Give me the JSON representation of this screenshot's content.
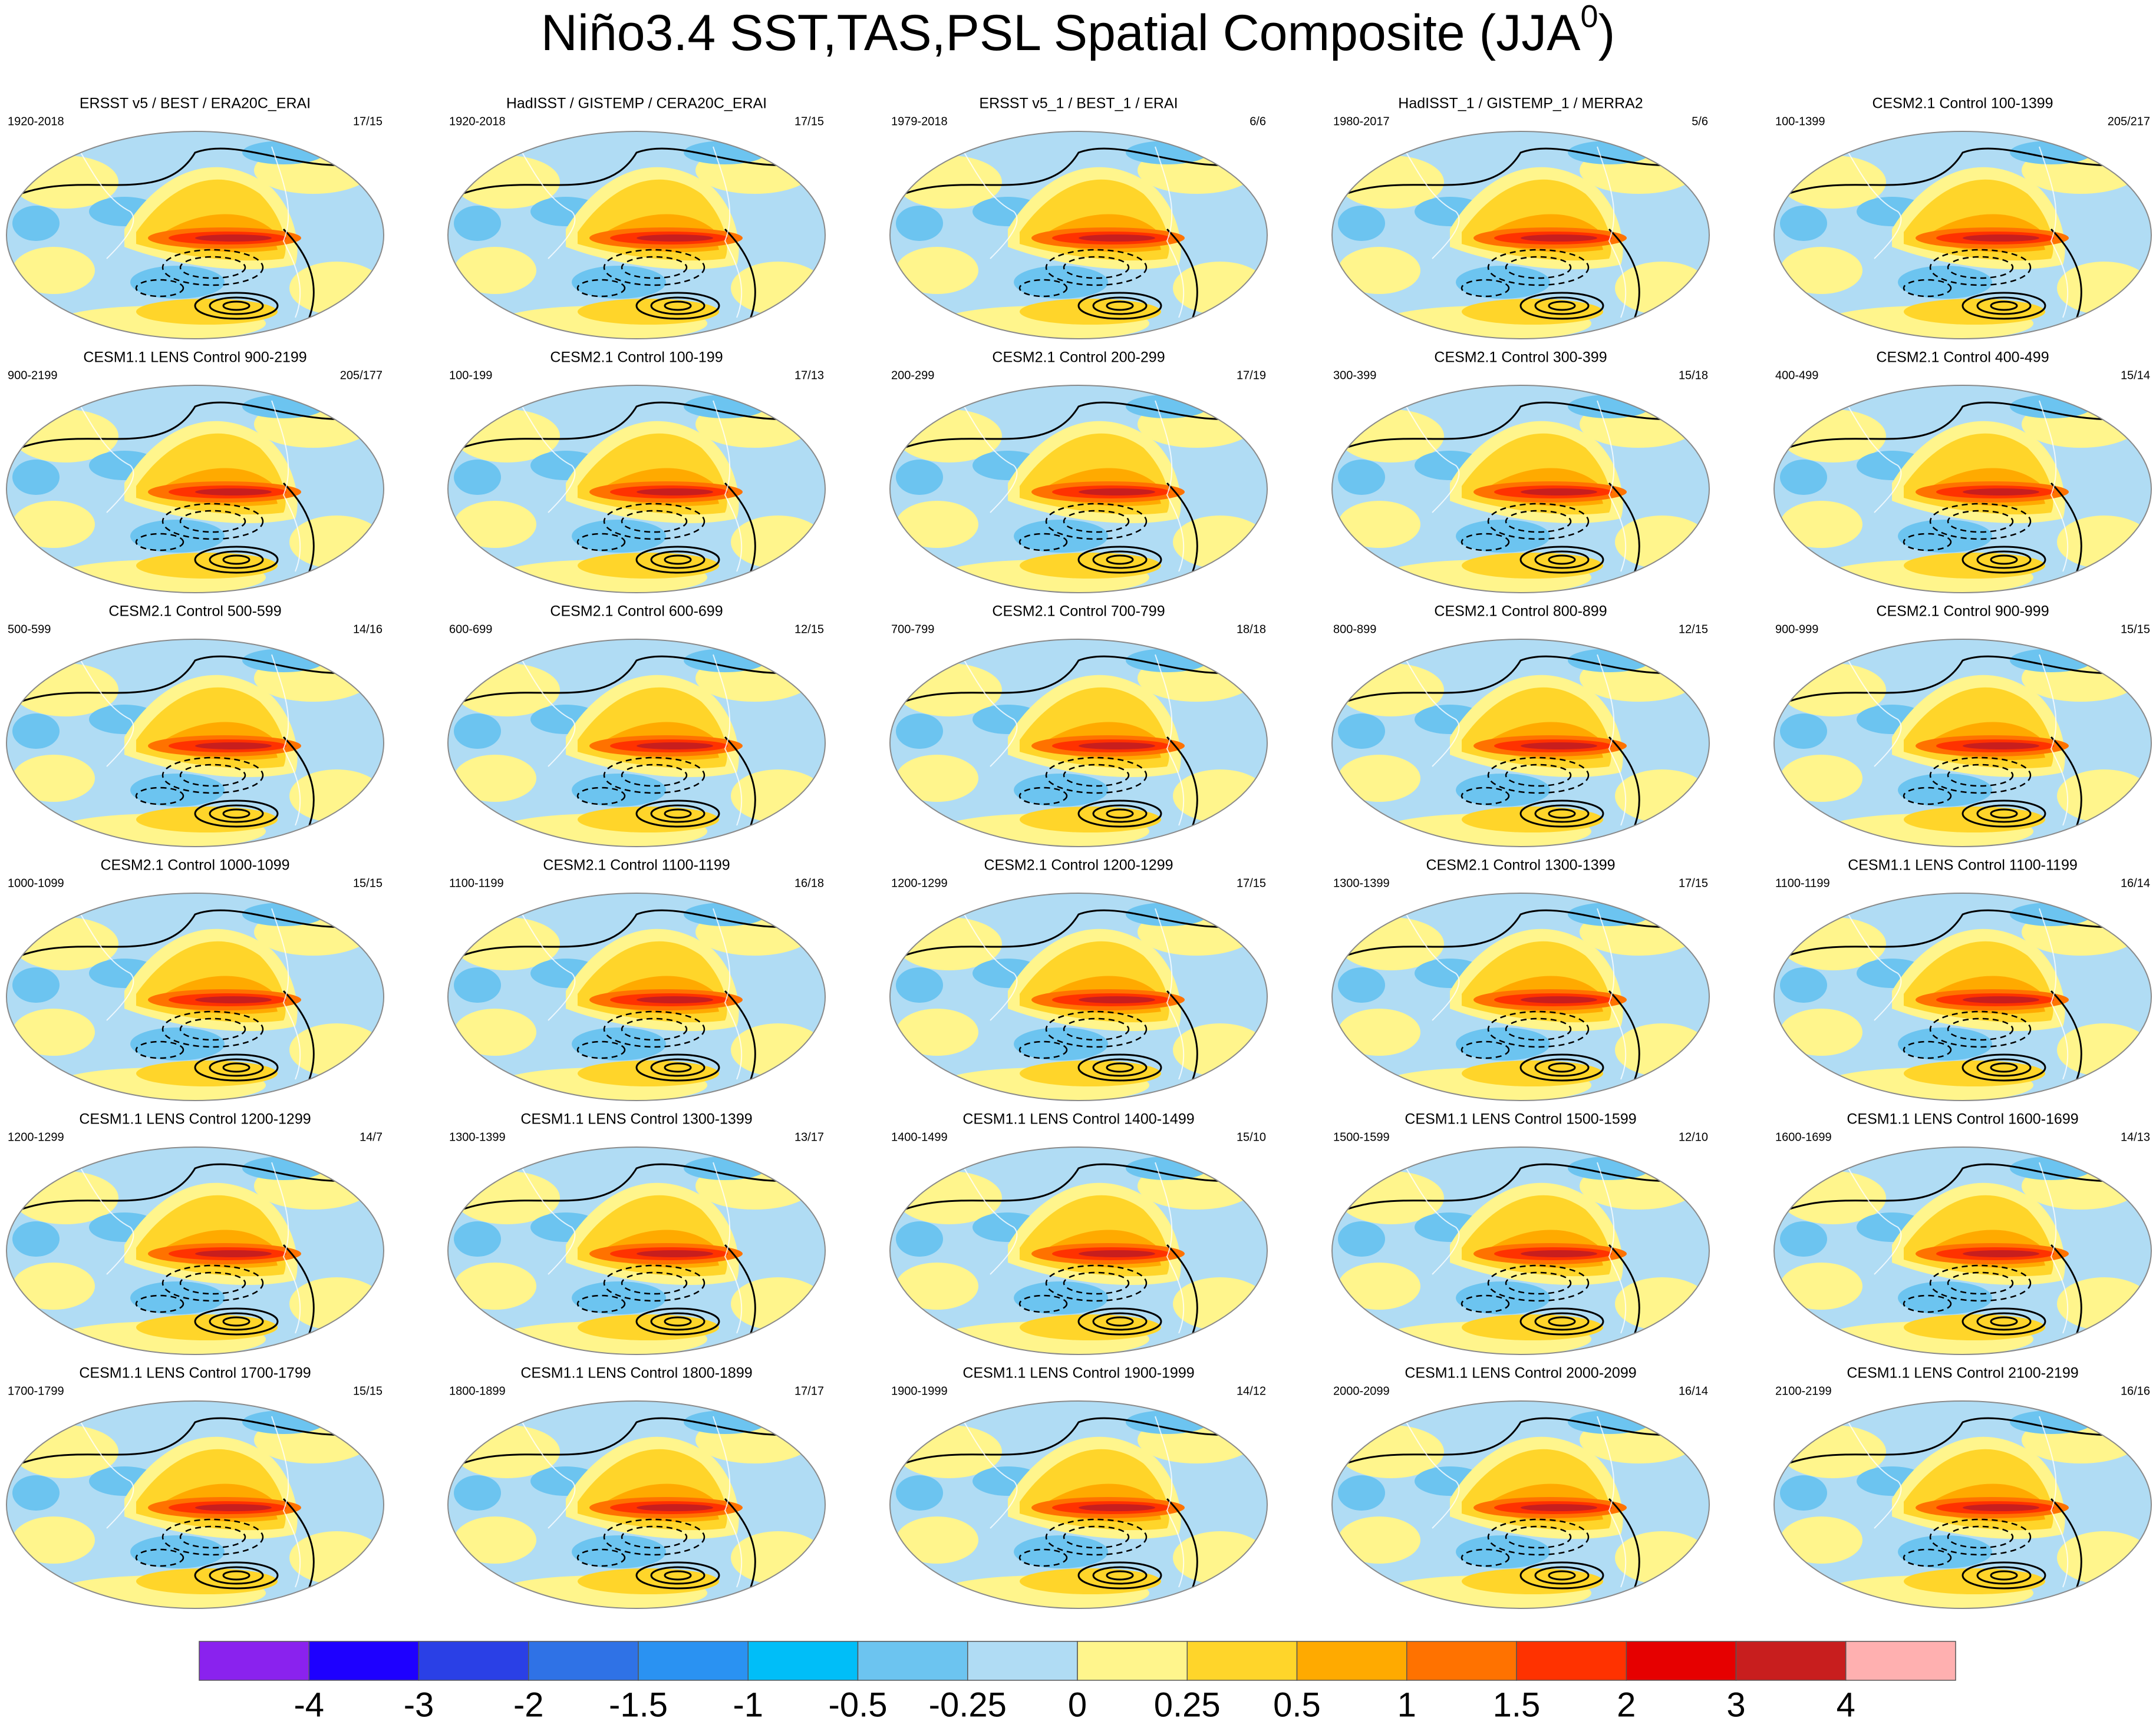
{
  "title": {
    "text": "Niño3.4 SST,TAS,PSL Spatial Composite (JJA",
    "superscript": "0",
    "end": ")"
  },
  "panels": [
    {
      "title": "ERSST v5 / BEST / ERA20C_ERAI",
      "period": "1920-2018",
      "count": "17/15"
    },
    {
      "title": "HadISST / GISTEMP / CERA20C_ERAI",
      "period": "1920-2018",
      "count": "17/15"
    },
    {
      "title": "ERSST v5_1 / BEST_1 / ERAI",
      "period": "1979-2018",
      "count": "6/6"
    },
    {
      "title": "HadISST_1 / GISTEMP_1 / MERRA2",
      "period": "1980-2017",
      "count": "5/6"
    },
    {
      "title": "CESM2.1 Control 100-1399",
      "period": "100-1399",
      "count": "205/217"
    },
    {
      "title": "CESM1.1 LENS Control 900-2199",
      "period": "900-2199",
      "count": "205/177"
    },
    {
      "title": "CESM2.1 Control 100-199",
      "period": "100-199",
      "count": "17/13"
    },
    {
      "title": "CESM2.1 Control 200-299",
      "period": "200-299",
      "count": "17/19"
    },
    {
      "title": "CESM2.1 Control 300-399",
      "period": "300-399",
      "count": "15/18"
    },
    {
      "title": "CESM2.1 Control 400-499",
      "period": "400-499",
      "count": "15/14"
    },
    {
      "title": "CESM2.1 Control 500-599",
      "period": "500-599",
      "count": "14/16"
    },
    {
      "title": "CESM2.1 Control 600-699",
      "period": "600-699",
      "count": "12/15"
    },
    {
      "title": "CESM2.1 Control 700-799",
      "period": "700-799",
      "count": "18/18"
    },
    {
      "title": "CESM2.1 Control 800-899",
      "period": "800-899",
      "count": "12/15"
    },
    {
      "title": "CESM2.1 Control 900-999",
      "period": "900-999",
      "count": "15/15"
    },
    {
      "title": "CESM2.1 Control 1000-1099",
      "period": "1000-1099",
      "count": "15/15"
    },
    {
      "title": "CESM2.1 Control 1100-1199",
      "period": "1100-1199",
      "count": "16/18"
    },
    {
      "title": "CESM2.1 Control 1200-1299",
      "period": "1200-1299",
      "count": "17/15"
    },
    {
      "title": "CESM2.1 Control 1300-1399",
      "period": "1300-1399",
      "count": "17/15"
    },
    {
      "title": "CESM1.1 LENS Control 1100-1199",
      "period": "1100-1199",
      "count": "16/14"
    },
    {
      "title": "CESM1.1 LENS Control 1200-1299",
      "period": "1200-1299",
      "count": "14/7"
    },
    {
      "title": "CESM1.1 LENS Control 1300-1399",
      "period": "1300-1399",
      "count": "13/17"
    },
    {
      "title": "CESM1.1 LENS Control 1400-1499",
      "period": "1400-1499",
      "count": "15/10"
    },
    {
      "title": "CESM1.1 LENS Control 1500-1599",
      "period": "1500-1599",
      "count": "12/10"
    },
    {
      "title": "CESM1.1 LENS Control 1600-1699",
      "period": "1600-1699",
      "count": "14/13"
    },
    {
      "title": "CESM1.1 LENS Control 1700-1799",
      "period": "1700-1799",
      "count": "15/15"
    },
    {
      "title": "CESM1.1 LENS Control 1800-1899",
      "period": "1800-1899",
      "count": "17/17"
    },
    {
      "title": "CESM1.1 LENS Control 1900-1999",
      "period": "1900-1999",
      "count": "14/12"
    },
    {
      "title": "CESM1.1 LENS Control 2000-2099",
      "period": "2000-2099",
      "count": "16/14"
    },
    {
      "title": "CESM1.1 LENS Control 2100-2199",
      "period": "2100-2199",
      "count": "16/16"
    }
  ],
  "colorbar": {
    "labels": [
      -4,
      -3,
      -2,
      -1.5,
      -1,
      -0.5,
      -0.25,
      0,
      0.25,
      0.5,
      1,
      1.5,
      2,
      3,
      4
    ],
    "colors": [
      "#8a22ee",
      "#1e00ff",
      "#2a40e6",
      "#2f72e6",
      "#2a92f2",
      "#00bef8",
      "#6cc4f0",
      "#b0dcf4",
      "#fff58c",
      "#ffd52a",
      "#ffaa00",
      "#ff7200",
      "#ff3200",
      "#e60000",
      "#c81e1e",
      "#ffb0b0"
    ]
  }
}
